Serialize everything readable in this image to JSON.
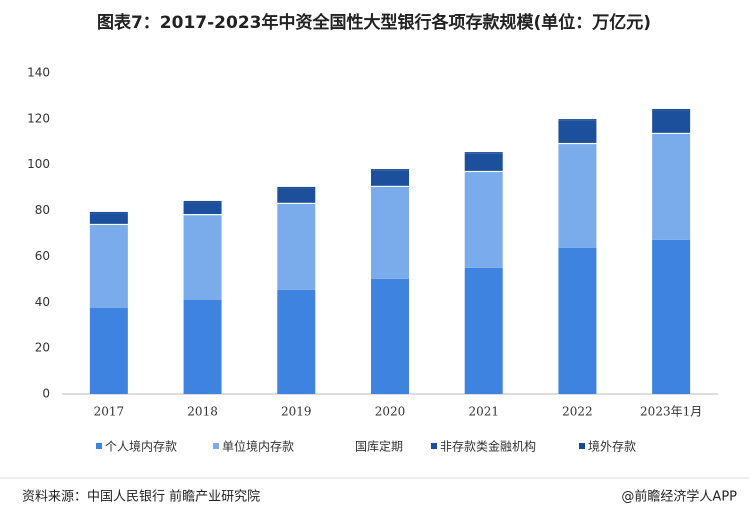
{
  "chart_data": {
    "type": "stacked_bar",
    "title": "图表7：2017-2023年中资全国性大型银行各项存款规模(单位：万亿元)",
    "categories": [
      "2017",
      "2018",
      "2019",
      "2020",
      "2021",
      "2022",
      "2023年1月"
    ],
    "series": [
      {
        "name": "个人境内存款",
        "color": "#3f83e0",
        "values": [
          37.5,
          41,
          45.4,
          50.2,
          55,
          63.7,
          67.2
        ]
      },
      {
        "name": "单位境内存款",
        "color": "#7aabea",
        "values": [
          36.2,
          37,
          37.5,
          40.1,
          41.8,
          45.3,
          46.2
        ]
      },
      {
        "name": "国库定期",
        "color": "#ffffff",
        "values": [
          0.5,
          0.5,
          0.5,
          0.5,
          0.5,
          0.5,
          0.5
        ]
      },
      {
        "name": "非存款类金融机构",
        "color": "#1c4f9c",
        "values": [
          4.7,
          5.2,
          6.4,
          6.8,
          7.7,
          9.9,
          9.9
        ]
      },
      {
        "name": "境外存款",
        "color": "#1a4a93",
        "values": [
          0.5,
          0.5,
          0.5,
          0.5,
          0.5,
          0.5,
          0.5
        ]
      }
    ],
    "ylim": [
      0,
      140
    ],
    "yticks": [
      0,
      20,
      40,
      60,
      80,
      100,
      120,
      140
    ],
    "source": "资料来源：中国人民银行 前瞻产业研究院",
    "credit": "@前瞻经济学人APP"
  }
}
